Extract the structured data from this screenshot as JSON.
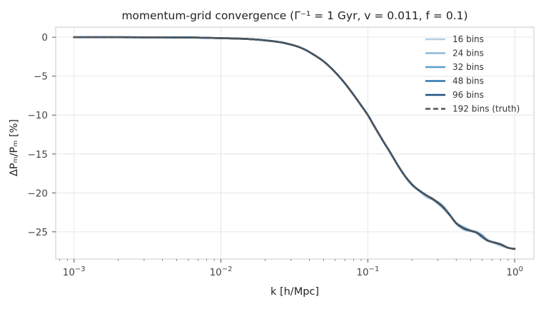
{
  "chart_data": {
    "type": "line",
    "title": "momentum-grid convergence (Γ⁻¹ = 1 Gyr, v = 0.011, f = 0.1)",
    "xlabel": "k [h/Mpc]",
    "ylabel": "ΔPₘ/Pₘ [%]",
    "xscale": "log",
    "xlim": [
      0.00075,
      1.35
    ],
    "ylim": [
      -28.5,
      1.3
    ],
    "x_ticks": [
      {
        "value": 0.001,
        "base": "10",
        "exp": "−3"
      },
      {
        "value": 0.01,
        "base": "10",
        "exp": "−2"
      },
      {
        "value": 0.1,
        "base": "10",
        "exp": "−1"
      },
      {
        "value": 1,
        "base": "10",
        "exp": "0"
      }
    ],
    "y_ticks": [
      {
        "value": 0,
        "label": "0"
      },
      {
        "value": -5,
        "label": "−5"
      },
      {
        "value": -10,
        "label": "−10"
      },
      {
        "value": -15,
        "label": "−15"
      },
      {
        "value": -20,
        "label": "−20"
      },
      {
        "value": -25,
        "label": "−25"
      }
    ],
    "grid": true,
    "legend_position": "top-right",
    "x": [
      0.001,
      0.0015,
      0.002,
      0.003,
      0.005,
      0.007,
      0.01,
      0.015,
      0.02,
      0.025,
      0.03,
      0.035,
      0.04,
      0.05,
      0.06,
      0.07,
      0.08,
      0.09,
      0.1,
      0.11,
      0.12,
      0.13,
      0.14,
      0.16,
      0.18,
      0.2,
      0.22,
      0.25,
      0.28,
      0.32,
      0.36,
      0.4,
      0.45,
      0.5,
      0.55,
      0.6,
      0.65,
      0.7,
      0.8,
      0.9,
      1.0
    ],
    "truth": [
      0.0,
      0.0,
      0.0,
      -0.01,
      -0.02,
      -0.05,
      -0.12,
      -0.22,
      -0.4,
      -0.62,
      -0.95,
      -1.35,
      -1.9,
      -3.1,
      -4.5,
      -5.95,
      -7.4,
      -8.75,
      -10.0,
      -11.35,
      -12.55,
      -13.65,
      -14.6,
      -16.45,
      -17.9,
      -18.95,
      -19.6,
      -20.3,
      -20.85,
      -21.7,
      -22.8,
      -23.9,
      -24.55,
      -24.85,
      -25.1,
      -25.6,
      -26.1,
      -26.3,
      -26.6,
      -27.05,
      -27.2
    ],
    "series": [
      {
        "name": "16 bins",
        "color": "#b3cde3",
        "dash": "solid",
        "offsets": [
          [
            0.16,
            -0.1
          ],
          [
            0.2,
            0.15
          ],
          [
            0.25,
            -0.25
          ],
          [
            0.32,
            0.2
          ],
          [
            0.45,
            -0.2
          ],
          [
            0.6,
            0.25
          ],
          [
            0.8,
            -0.2
          ]
        ]
      },
      {
        "name": "24 bins",
        "color": "#8cbad9",
        "dash": "solid",
        "offsets": [
          [
            0.2,
            0.1
          ],
          [
            0.32,
            -0.15
          ],
          [
            0.45,
            0.15
          ],
          [
            0.6,
            -0.15
          ]
        ]
      },
      {
        "name": "32 bins",
        "color": "#5b9fcf",
        "dash": "solid",
        "offsets": [
          [
            0.25,
            0.05
          ],
          [
            0.5,
            -0.05
          ]
        ]
      },
      {
        "name": "48 bins",
        "color": "#2f75b0",
        "dash": "solid",
        "offsets": []
      },
      {
        "name": "96 bins",
        "color": "#1f4f82",
        "dash": "solid",
        "offsets": []
      },
      {
        "name": "192 bins (truth)",
        "color": "#555555",
        "dash": "dashed",
        "offsets": []
      }
    ]
  }
}
